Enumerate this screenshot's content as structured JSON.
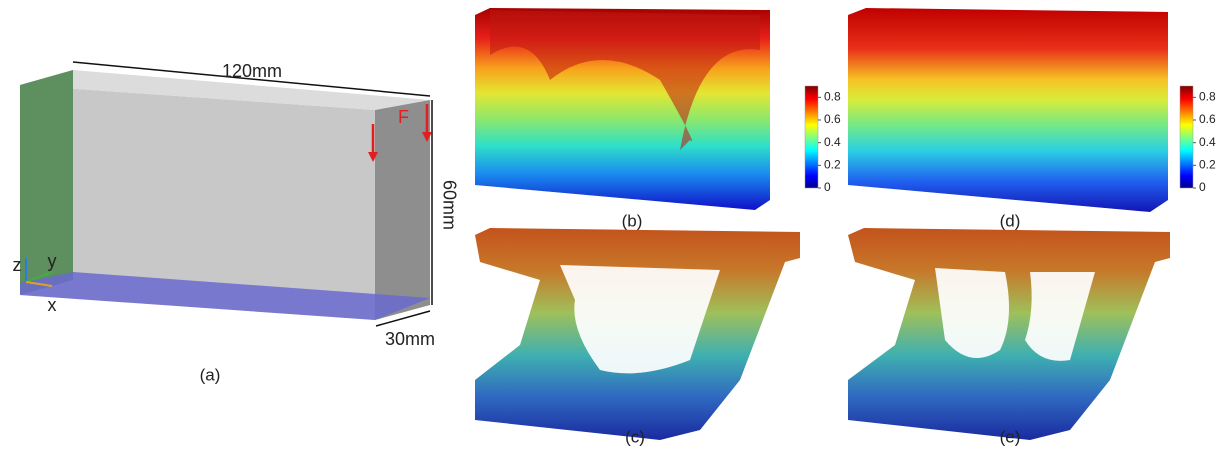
{
  "panel_a": {
    "width_label": "120mm",
    "height_label": "60mm",
    "depth_label": "30mm",
    "force_label": "F",
    "axis_z": "z",
    "axis_y": "y",
    "axis_x": "x",
    "caption": "(a)"
  },
  "panel_b": {
    "caption": "(b)",
    "colorbar": {
      "lim": [
        0,
        0.9
      ],
      "ticks": [
        0,
        0.2,
        0.4,
        0.6,
        0.8
      ]
    }
  },
  "panel_c": {
    "caption": "(c)"
  },
  "panel_d": {
    "caption": "(d)",
    "colorbar": {
      "lim": [
        0,
        0.9
      ],
      "ticks": [
        0,
        0.2,
        0.4,
        0.6,
        0.8
      ]
    }
  },
  "panel_e": {
    "caption": "(e)"
  }
}
